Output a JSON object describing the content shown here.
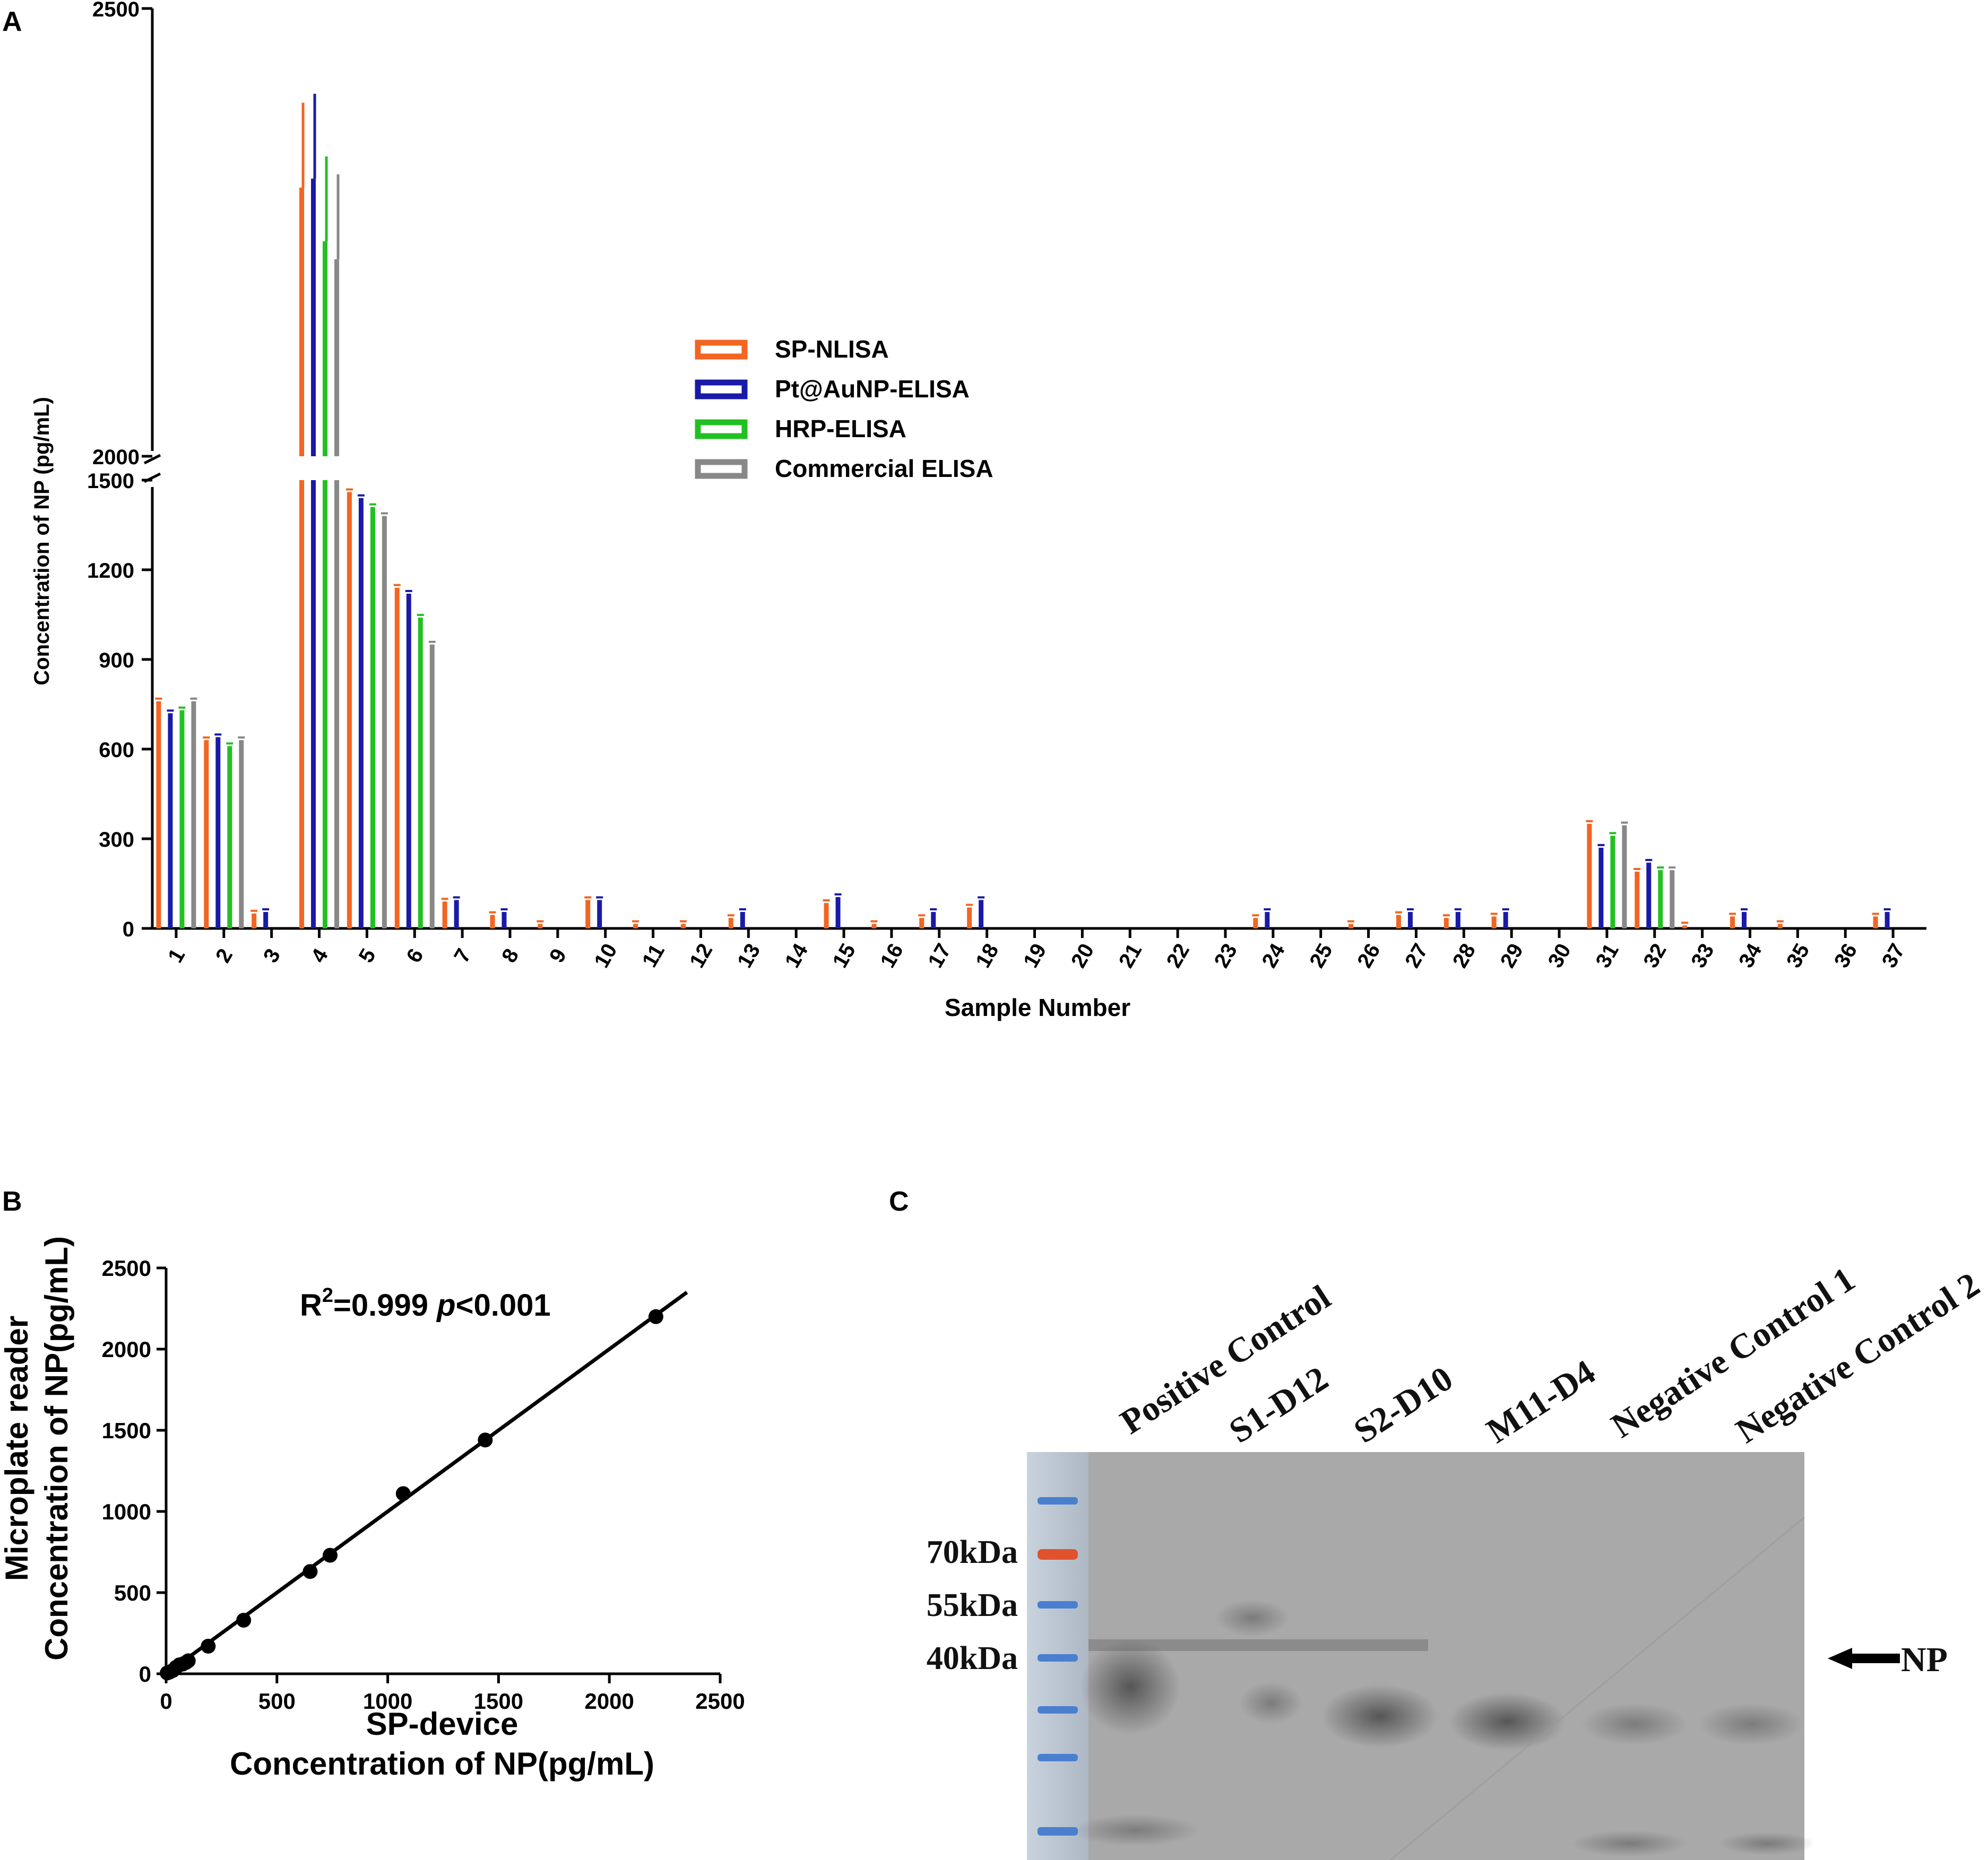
{
  "panels": {
    "a": "A",
    "b": "B",
    "c": "C"
  },
  "colors": {
    "sp_nlisa": "#f26522",
    "pt_elisa": "#1a1aa8",
    "hrp_elisa": "#22c022",
    "commercial": "#888888"
  },
  "chart_data": [
    {
      "type": "bar",
      "panel": "A",
      "xlabel": "Sample Number",
      "ylabel": "Concentration of NP (pg/mL)",
      "axis_break": {
        "lower": [
          0,
          1500
        ],
        "upper": [
          2000,
          2500
        ]
      },
      "yticks_lower": [
        0,
        300,
        600,
        900,
        1200,
        1500
      ],
      "yticks_upper": [
        2000,
        2500
      ],
      "categories": [
        "1",
        "2",
        "3",
        "4",
        "5",
        "6",
        "7",
        "8",
        "9",
        "10",
        "11",
        "12",
        "13",
        "14",
        "15",
        "16",
        "17",
        "18",
        "19",
        "20",
        "21",
        "22",
        "23",
        "24",
        "25",
        "26",
        "27",
        "28",
        "29",
        "30",
        "31",
        "32",
        "33",
        "34",
        "35",
        "36",
        "37"
      ],
      "series": [
        {
          "name": "SP-NLISA",
          "color": "#f26522",
          "values": [
            760,
            630,
            50,
            2300,
            1460,
            1140,
            90,
            45,
            15,
            95,
            15,
            15,
            35,
            0,
            85,
            15,
            35,
            70,
            0,
            0,
            0,
            0,
            0,
            35,
            0,
            15,
            45,
            35,
            40,
            0,
            350,
            190,
            10,
            40,
            15,
            0,
            40
          ]
        },
        {
          "name": "Pt@AuNP-ELISA",
          "color": "#1a1aa8",
          "values": [
            720,
            640,
            55,
            2310,
            1440,
            1120,
            95,
            55,
            0,
            95,
            0,
            0,
            55,
            0,
            105,
            0,
            55,
            95,
            0,
            0,
            0,
            0,
            0,
            55,
            0,
            0,
            55,
            55,
            55,
            0,
            270,
            220,
            0,
            55,
            0,
            0,
            55
          ]
        },
        {
          "name": "HRP-ELISA",
          "color": "#22c022",
          "values": [
            730,
            610,
            0,
            2240,
            1410,
            1040,
            0,
            0,
            0,
            0,
            0,
            0,
            0,
            0,
            0,
            0,
            0,
            0,
            0,
            0,
            0,
            0,
            0,
            0,
            0,
            0,
            0,
            0,
            0,
            0,
            310,
            195,
            0,
            0,
            0,
            0,
            0
          ]
        },
        {
          "name": "Commercial ELISA",
          "color": "#888888",
          "values": [
            760,
            630,
            0,
            2220,
            1380,
            950,
            0,
            0,
            0,
            0,
            0,
            0,
            0,
            0,
            0,
            0,
            0,
            0,
            0,
            0,
            0,
            0,
            0,
            0,
            0,
            0,
            0,
            0,
            0,
            0,
            345,
            195,
            0,
            0,
            0,
            0,
            0
          ]
        }
      ]
    },
    {
      "type": "scatter",
      "panel": "B",
      "annotation_main": "R",
      "annotation_sup": "2",
      "annotation_val": "=0.999 ",
      "annotation_p": "p",
      "annotation_tail": "<0.001",
      "xlabel_line1": "SP-device",
      "xlabel_line2": "Concentration of NP(pg/mL)",
      "ylabel_line1": "Microplate reader",
      "ylabel_line2": "Concentration of NP(pg/mL)",
      "xlim": [
        0,
        2500
      ],
      "ylim": [
        0,
        2500
      ],
      "xticks": [
        0,
        500,
        1000,
        1500,
        2000,
        2500
      ],
      "yticks": [
        0,
        500,
        1000,
        1500,
        2000,
        2500
      ],
      "x": [
        5,
        15,
        30,
        45,
        60,
        75,
        90,
        100,
        190,
        350,
        650,
        740,
        1070,
        1440,
        2210
      ],
      "y": [
        5,
        10,
        20,
        40,
        55,
        60,
        70,
        80,
        170,
        330,
        630,
        730,
        1110,
        1440,
        2200
      ],
      "fit_line": {
        "slope": 1.0,
        "intercept": 0,
        "x_end": 2350
      }
    }
  ],
  "blot": {
    "lanes": [
      "Positive Control",
      "S1-D12",
      "S2-D10",
      "M11-D4",
      "Negative Control 1",
      "Negative Control 2"
    ],
    "markers": [
      "70kDa",
      "55kDa",
      "40kDa"
    ],
    "arrow_label": "NP"
  }
}
